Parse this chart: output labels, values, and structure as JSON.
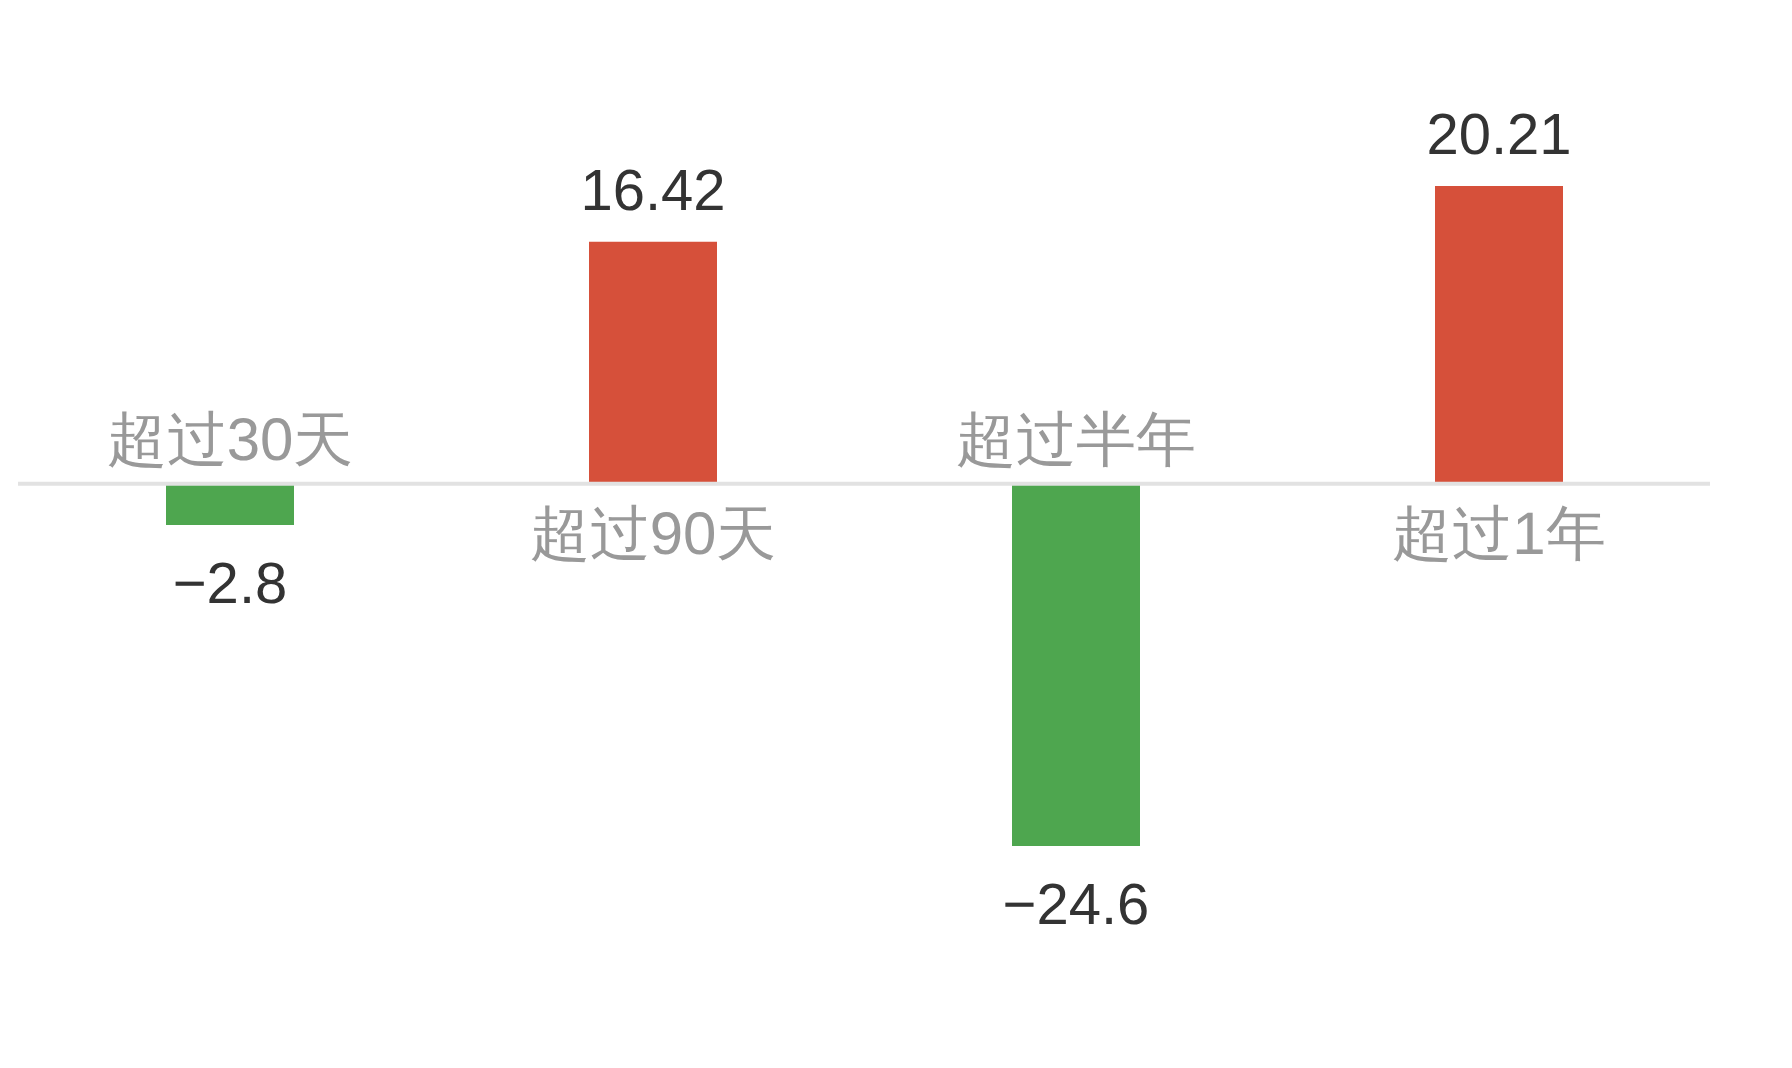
{
  "chart_data": {
    "type": "bar",
    "categories": [
      "超过30天",
      "超过90天",
      "超过半年",
      "超过1年"
    ],
    "values": [
      -2.8,
      16.42,
      -24.6,
      20.21
    ],
    "colors": [
      "#4ea64f",
      "#d6503a",
      "#4ea64f",
      "#d6503a"
    ],
    "value_labels": [
      "−2.8",
      "16.42",
      "−24.6",
      "20.21"
    ],
    "tick_labels": "x"
  }
}
